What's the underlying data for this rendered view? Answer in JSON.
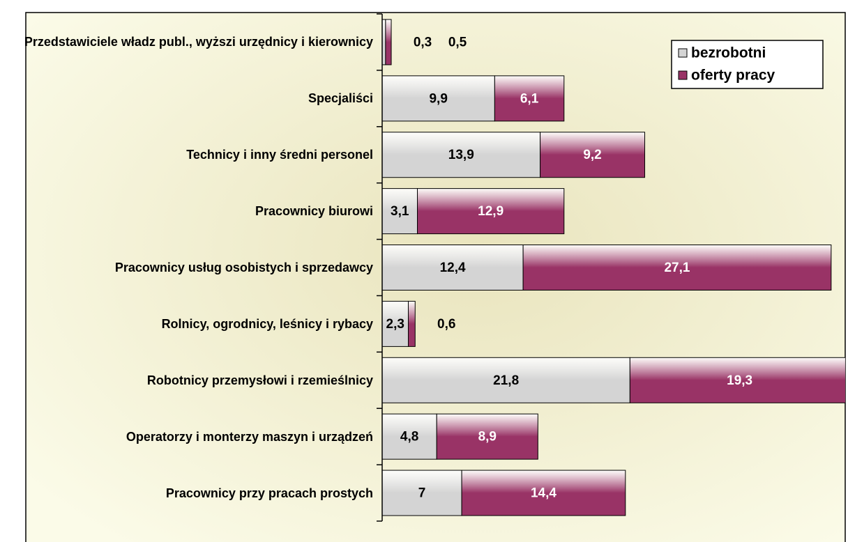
{
  "chart_data": {
    "type": "stacked-bar-horizontal",
    "categories": [
      "Przedstawiciele władz publ., wyższi urzędnicy i kierownicy",
      "Specjaliści",
      "Technicy i inny średni personel",
      "Pracownicy biurowi",
      "Pracownicy usług osobistych i sprzedawcy",
      "Rolnicy, ogrodnicy, leśnicy i rybacy",
      "Robotnicy przemysłowi i rzemieślnicy",
      "Operatorzy i monterzy maszyn i urządzeń",
      "Pracownicy przy pracach prostych"
    ],
    "series": [
      {
        "name": "bezrobotni",
        "color": "#d4d4d4",
        "values": [
          0.3,
          9.9,
          13.9,
          3.1,
          12.4,
          2.3,
          21.8,
          4.8,
          7
        ],
        "value_labels": [
          "0,3",
          "9,9",
          "13,9",
          "3,1",
          "12,4",
          "2,3",
          "21,8",
          "4,8",
          "7"
        ]
      },
      {
        "name": "oferty pracy",
        "color": "#993366",
        "values": [
          0.5,
          6.1,
          9.2,
          12.9,
          27.1,
          0.6,
          19.3,
          8.9,
          14.4
        ],
        "value_labels": [
          "0,5",
          "6,1",
          "9,2",
          "12,9",
          "27,1",
          "0,6",
          "19,3",
          "8,9",
          "14,4"
        ]
      }
    ],
    "xlim": [
      0,
      40
    ],
    "legend": "top-right"
  }
}
